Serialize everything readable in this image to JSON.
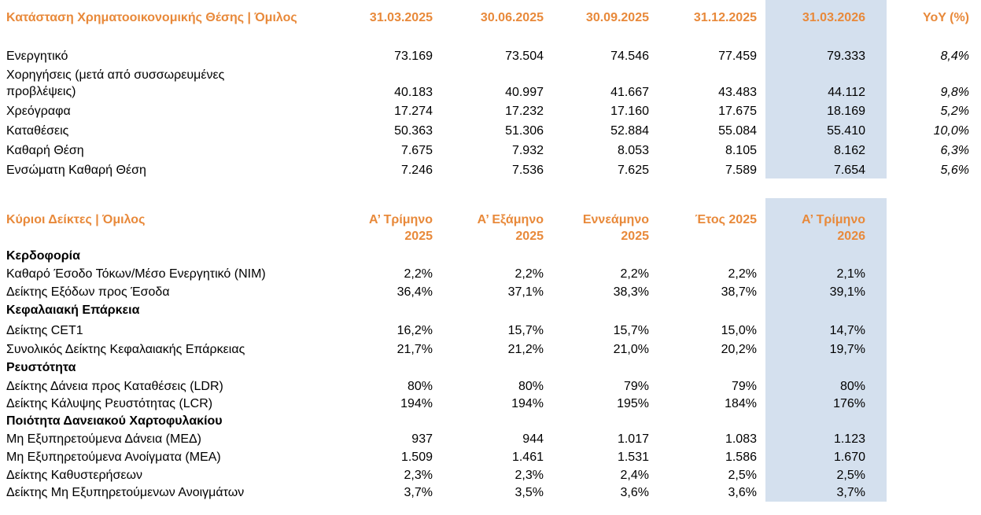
{
  "colors": {
    "accent_orange": "#e8893a",
    "highlight_blue": "#d4e0ee"
  },
  "balance": {
    "title": "Κατάσταση Χρηματοοικονομικής Θέσης | Όμιλος",
    "headers": [
      "31.03.2025",
      "30.06.2025",
      "30.09.2025",
      "31.12.2025",
      "31.03.2026",
      "YoY (%)"
    ],
    "rows": [
      {
        "label": "Ενεργητικό",
        "values": [
          "73.169",
          "73.504",
          "74.546",
          "77.459",
          "79.333"
        ],
        "yoy": "8,4%"
      },
      {
        "label": "Χορηγήσεις (μετά από συσσωρευμένες προβλέψεις)",
        "values": [
          "40.183",
          "40.997",
          "41.667",
          "43.483",
          "44.112"
        ],
        "yoy": "9,8%"
      },
      {
        "label": "Χρεόγραφα",
        "values": [
          "17.274",
          "17.232",
          "17.160",
          "17.675",
          "18.169"
        ],
        "yoy": "5,2%"
      },
      {
        "label": "Καταθέσεις",
        "values": [
          "50.363",
          "51.306",
          "52.884",
          "55.084",
          "55.410"
        ],
        "yoy": "10,0%"
      },
      {
        "label": "Καθαρή Θέση",
        "values": [
          "7.675",
          "7.932",
          "8.053",
          "8.105",
          "8.162"
        ],
        "yoy": "6,3%"
      },
      {
        "label": "Ενσώματη Καθαρή Θέση",
        "values": [
          "7.246",
          "7.536",
          "7.625",
          "7.589",
          "7.654"
        ],
        "yoy": "5,6%"
      }
    ]
  },
  "ratios": {
    "title": "Κύριοι Δείκτες | Όμιλος",
    "headers": [
      {
        "l1": "Α’ Τρίμηνο",
        "l2": "2025"
      },
      {
        "l1": "Α’ Εξάμηνο",
        "l2": "2025"
      },
      {
        "l1": "Εννεάμηνο",
        "l2": "2025"
      },
      {
        "l1": "Έτος 2025",
        "l2": ""
      },
      {
        "l1": "Α’ Τρίμηνο",
        "l2": "2026"
      }
    ],
    "sections": [
      {
        "title": "Κερδοφορία",
        "rows": [
          {
            "label": "Καθαρό Έσοδο Τόκων/Μέσο Ενεργητικό (NIM)",
            "values": [
              "2,2%",
              "2,2%",
              "2,2%",
              "2,2%",
              "2,1%"
            ]
          },
          {
            "label": "Δείκτης Εξόδων προς Έσοδα",
            "values": [
              "36,4%",
              "37,1%",
              "38,3%",
              "38,7%",
              "39,1%"
            ]
          }
        ]
      },
      {
        "title": "Κεφαλαιακή Επάρκεια",
        "rows": [
          {
            "label": "Δείκτης CET1",
            "values": [
              "16,2%",
              "15,7%",
              "15,7%",
              "15,0%",
              "14,7%"
            ]
          },
          {
            "label": "Συνολικός Δείκτης Κεφαλαιακής Επάρκειας",
            "values": [
              "21,7%",
              "21,2%",
              "21,0%",
              "20,2%",
              "19,7%"
            ]
          }
        ]
      },
      {
        "title": "Ρευστότητα",
        "rows": [
          {
            "label": "Δείκτης Δάνεια προς Καταθέσεις (LDR)",
            "values": [
              "80%",
              "80%",
              "79%",
              "79%",
              "80%"
            ]
          },
          {
            "label": "Δείκτης Κάλυψης Ρευστότητας (LCR)",
            "values": [
              "194%",
              "194%",
              "195%",
              "184%",
              "176%"
            ]
          }
        ]
      },
      {
        "title": "Ποιότητα Δανειακού Χαρτοφυλακίου",
        "rows": [
          {
            "label": "Μη Εξυπηρετούμενα Δάνεια (ΜΕΔ)",
            "values": [
              "937",
              "944",
              "1.017",
              "1.083",
              "1.123"
            ]
          },
          {
            "label": "Μη Εξυπηρετούμενα Ανοίγματα (ΜΕΑ)",
            "values": [
              "1.509",
              "1.461",
              "1.531",
              "1.586",
              "1.670"
            ]
          },
          {
            "label": "Δείκτης Καθυστερήσεων",
            "values": [
              "2,3%",
              "2,3%",
              "2,4%",
              "2,5%",
              "2,5%"
            ]
          },
          {
            "label": "Δείκτης Μη Εξυπηρετούμενων Ανοιγμάτων",
            "values": [
              "3,7%",
              "3,5%",
              "3,6%",
              "3,6%",
              "3,7%"
            ]
          }
        ]
      }
    ]
  }
}
